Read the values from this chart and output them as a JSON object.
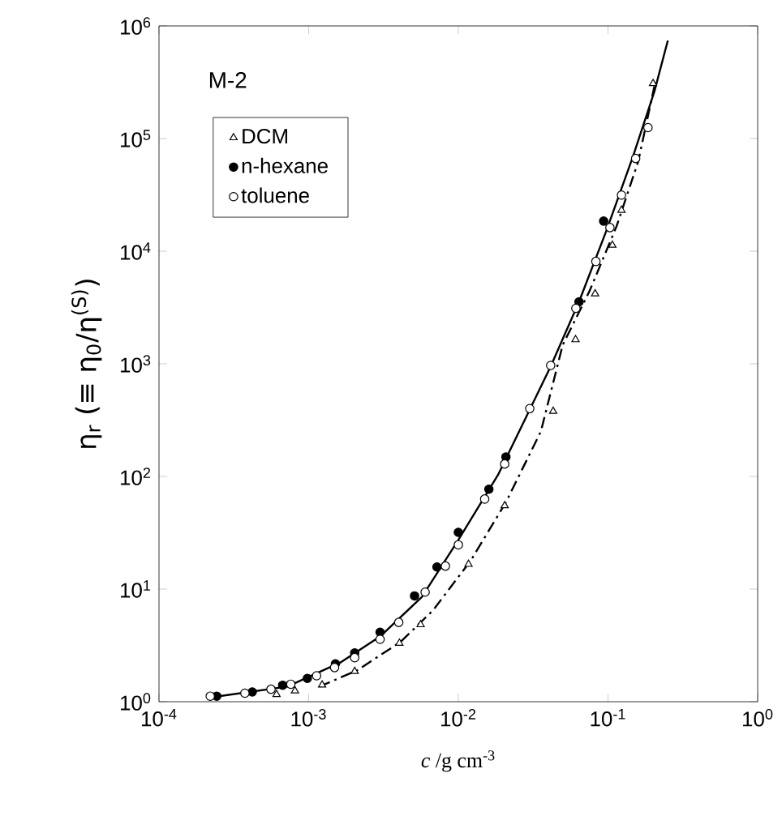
{
  "chart_data": {
    "type": "scatter",
    "xlabel": "*c* /g cm$^{-3}$",
    "ylabel": "η$_{r}$ (≡ η$_{0}$/η$^{(S)}$)",
    "annotations": [
      "M-2"
    ],
    "log": "xy",
    "xlim": [
      0.0001,
      1
    ],
    "ylim": [
      1,
      1000000
    ],
    "xticks": [
      {
        "value": 0.0001,
        "label": "10$^{-4}$"
      },
      {
        "value": 0.001,
        "label": "10$^{-3}$"
      },
      {
        "value": 0.01,
        "label": "10$^{-2}$"
      },
      {
        "value": 0.1,
        "label": "10$^{-1}$"
      },
      {
        "value": 1,
        "label": "10$^{0}$"
      }
    ],
    "yticks": [
      {
        "value": 1,
        "label": "10$^{0}$"
      },
      {
        "value": 10,
        "label": "10$^{1}$"
      },
      {
        "value": 100,
        "label": "10$^{2}$"
      },
      {
        "value": 1000,
        "label": "10$^{3}$"
      },
      {
        "value": 10000,
        "label": "10$^{4}$"
      },
      {
        "value": 100000,
        "label": "10$^{5}$"
      },
      {
        "value": 1000000,
        "label": "10$^{6}$"
      }
    ],
    "legend": "top left",
    "grid": false,
    "series": [
      {
        "name": "DCM",
        "type": "scatter",
        "marker": "triangle",
        "color": "#ffffff",
        "x": [
          0.00061,
          0.00081,
          0.00123,
          0.00203,
          0.00404,
          0.0056,
          0.0117,
          0.0204,
          0.043,
          0.0607,
          0.082,
          0.107,
          0.123,
          0.2
        ],
        "values": [
          1.16,
          1.25,
          1.41,
          1.86,
          3.31,
          4.83,
          16.6,
          55,
          379,
          1640,
          4190,
          11300,
          23100,
          308000
        ]
      },
      {
        "name": "n-hexane",
        "type": "scatter",
        "marker": "circle",
        "color": "#000000",
        "x": [
          0.000243,
          0.00042,
          0.00067,
          0.00098,
          0.00151,
          0.00203,
          0.003,
          0.0051,
          0.0072,
          0.01,
          0.016,
          0.0208,
          0.064,
          0.0935
        ],
        "values": [
          1.12,
          1.22,
          1.4,
          1.61,
          2.17,
          2.71,
          4.14,
          8.7,
          15.7,
          31.9,
          77,
          149,
          3550,
          18500
        ]
      },
      {
        "name": "toluene",
        "type": "scatter",
        "marker": "circle",
        "color": "#ffffff",
        "x": [
          0.00022,
          0.000375,
          0.00056,
          0.00076,
          0.00113,
          0.00149,
          0.00203,
          0.003,
          0.004,
          0.006,
          0.0082,
          0.01,
          0.015,
          0.0204,
          0.03,
          0.0414,
          0.061,
          0.083,
          0.103,
          0.123,
          0.153,
          0.185
        ],
        "values": [
          1.12,
          1.19,
          1.29,
          1.43,
          1.7,
          2.01,
          2.46,
          3.58,
          5.06,
          9.4,
          16,
          24.7,
          63,
          129,
          400,
          968,
          3110,
          8110,
          16200,
          31500,
          66500,
          125000
        ]
      },
      {
        "type": "line",
        "marker": "none",
        "line_style": "solid",
        "color": "#000000",
        "x": [
          0.00022,
          0.00072,
          0.00165,
          0.003,
          0.0057,
          0.01,
          0.0184,
          0.03,
          0.0414,
          0.064,
          0.097,
          0.147,
          0.204,
          0.251
        ],
        "values": [
          1.09,
          1.36,
          2.25,
          3.79,
          8.5,
          27.3,
          103,
          392,
          946,
          3550,
          14900,
          69500,
          261000,
          743000
        ]
      },
      {
        "type": "line",
        "marker": "none",
        "line_style": "dashdot",
        "color": "#000000",
        "x": [
          0.00118,
          0.00211,
          0.0041,
          0.00676,
          0.0121,
          0.0208,
          0.0356,
          0.0498,
          0.0753,
          0.114,
          0.159,
          0.204
        ],
        "values": [
          1.36,
          1.9,
          3.39,
          6.45,
          17.9,
          59,
          251,
          1470,
          4430,
          16600,
          62200,
          291000
        ]
      }
    ]
  }
}
